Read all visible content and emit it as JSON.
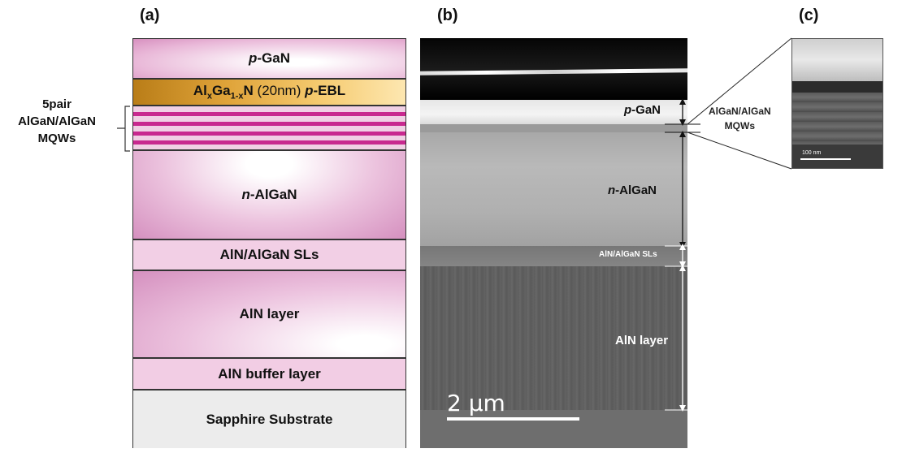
{
  "panels": {
    "a": "(a)",
    "b": "(b)",
    "c": "(c)"
  },
  "structure": {
    "p_gan": {
      "prefix": "p",
      "rest": "-GaN"
    },
    "ebl": {
      "al": "Al",
      "x": "x",
      "ga": "Ga",
      "one_minus_x": "1-x",
      "n": "N",
      "thickness": " (20nm) ",
      "p": "p",
      "rest": "-EBL"
    },
    "mqw_label": [
      "5pair",
      "AlGaN/AlGaN",
      "MQWs"
    ],
    "n_algan": {
      "prefix": "n",
      "rest": "-AlGaN"
    },
    "sls": "AlN/AlGaN SLs",
    "aln_layer": "AlN layer",
    "aln_buffer": "AlN buffer layer",
    "substrate": "Sapphire Substrate"
  },
  "tem": {
    "p_gan": {
      "prefix": "p",
      "rest": "-GaN"
    },
    "n_algan": {
      "prefix": "n",
      "rest": "-AlGaN"
    },
    "sls": "AlN/AlGaN SLs",
    "aln_layer": "AlN layer",
    "scale_bar": "2 μm"
  },
  "inset": {
    "label": [
      "AlGaN/AlGaN",
      "MQWs"
    ],
    "scale_bar": "100 nm"
  }
}
